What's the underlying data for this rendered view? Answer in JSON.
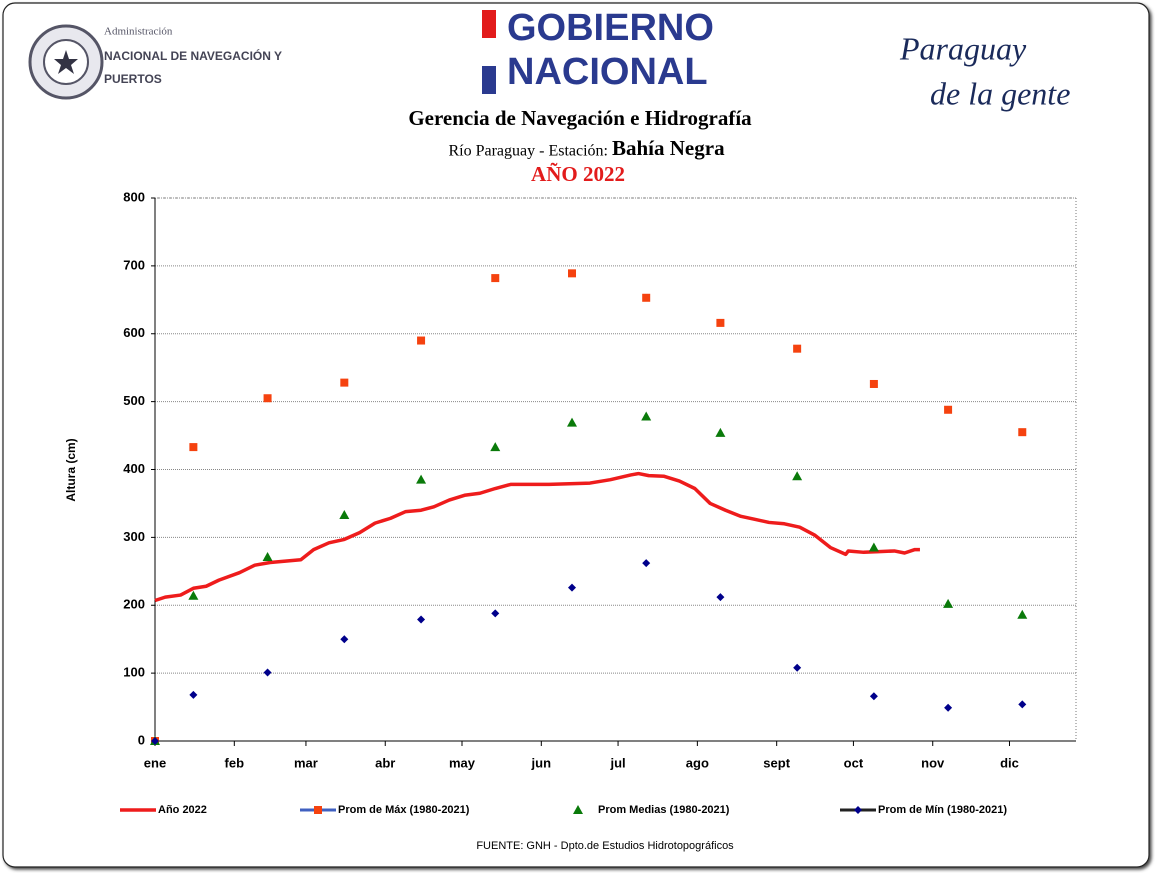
{
  "header": {
    "agency_small": "Administración",
    "agency_line1": "NACIONAL DE NAVEGACIÓN Y",
    "agency_line2": "PUERTOS",
    "gov_line1": "GOBIERNO",
    "gov_line2": "NACIONAL",
    "brand_line1": "Paraguay",
    "brand_line2": "de la gente"
  },
  "chart_data": {
    "type": "line",
    "title": "Gerencia de Navegación e Hidrografía",
    "subtitle_prefix": "Río Paraguay  -  Estación:",
    "subtitle_station": "Bahía Negra",
    "year_label": "AÑO 2022",
    "ylabel": "Altura (cm)",
    "source": "FUENTE: GNH - Dpto.de Estudios Hidrotopográficos",
    "xlim": [
      0,
      360
    ],
    "xticks": [
      {
        "value": 0,
        "label": "ene"
      },
      {
        "value": 31,
        "label": "feb"
      },
      {
        "value": 59,
        "label": "mar"
      },
      {
        "value": 90,
        "label": "abr"
      },
      {
        "value": 120,
        "label": "may"
      },
      {
        "value": 151,
        "label": "jun"
      },
      {
        "value": 181,
        "label": "jul"
      },
      {
        "value": 212,
        "label": "ago"
      },
      {
        "value": 243,
        "label": "sept"
      },
      {
        "value": 273,
        "label": "oct"
      },
      {
        "value": 304,
        "label": "nov"
      },
      {
        "value": 334,
        "label": "dic"
      }
    ],
    "ylim": [
      0,
      800
    ],
    "yticks": [
      0,
      100,
      200,
      300,
      400,
      500,
      600,
      700,
      800
    ],
    "grid": true,
    "series": [
      {
        "name": "Año 2022",
        "color": "#ee1c1c",
        "mark": "line",
        "x": [
          0,
          4,
          10,
          15,
          20,
          25,
          33,
          39,
          45,
          51,
          57,
          62,
          68,
          74,
          80,
          86,
          92,
          98,
          104,
          109,
          115,
          121,
          127,
          133,
          139,
          146,
          154,
          162,
          170,
          178,
          186,
          189,
          193,
          199,
          205,
          211,
          217,
          223,
          229,
          234,
          240,
          246,
          252,
          258,
          264,
          270,
          271,
          277,
          283,
          289,
          293,
          297,
          299
        ],
        "values": [
          207,
          212,
          215,
          225,
          228,
          237,
          248,
          259,
          263,
          265,
          267,
          282,
          292,
          297,
          307,
          321,
          328,
          338,
          340,
          345,
          355,
          362,
          365,
          372,
          378,
          378,
          378,
          379,
          380,
          385,
          392,
          394,
          391,
          390,
          383,
          372,
          350,
          340,
          331,
          327,
          322,
          320,
          315,
          303,
          285,
          275,
          280,
          278,
          279,
          280,
          277,
          282,
          282
        ]
      },
      {
        "name": "Prom de Máx (1980-2021)",
        "color": "#f5420f",
        "mark": "square",
        "x": [
          0,
          15,
          44,
          74,
          104,
          133,
          163,
          192,
          221,
          251,
          281,
          310,
          339
        ],
        "values": [
          0,
          433,
          505,
          528,
          590,
          682,
          689,
          653,
          616,
          578,
          526,
          488,
          455
        ]
      },
      {
        "name": "Prom Medias (1980-2021)",
        "color": "#0a7a0a",
        "mark": "triangle",
        "x": [
          0,
          15,
          44,
          74,
          104,
          133,
          163,
          192,
          221,
          251,
          281,
          310,
          339
        ],
        "values": [
          0,
          214,
          271,
          333,
          385,
          433,
          469,
          478,
          454,
          390,
          285,
          202,
          186
        ]
      },
      {
        "name": "Prom de Mín  (1980-2021)",
        "color": "#00008b",
        "mark": "diamond",
        "x": [
          0,
          15,
          44,
          74,
          104,
          133,
          163,
          192,
          221,
          251,
          281,
          310,
          339
        ],
        "values": [
          0,
          68,
          101,
          150,
          179,
          188,
          226,
          262,
          212,
          108,
          66,
          49,
          54
        ]
      }
    ]
  }
}
